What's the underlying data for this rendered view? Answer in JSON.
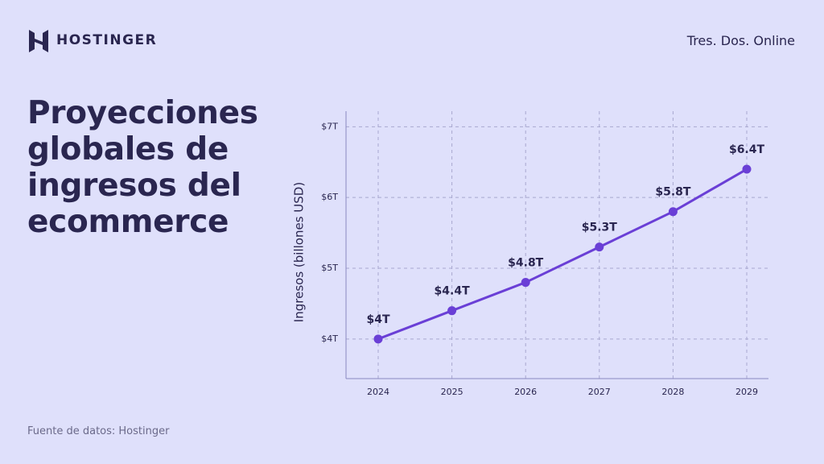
{
  "brand": "HOSTINGER",
  "tagline": "Tres. Dos. Online",
  "source": "Fuente de datos: Hostinger",
  "chart_data": {
    "type": "line",
    "title": "Proyecciones globales de ingresos del ecommerce",
    "ylabel": "Ingresos (billones USD)",
    "categories": [
      "2024",
      "2025",
      "2026",
      "2027",
      "2028",
      "2029"
    ],
    "values": [
      4,
      4.4,
      4.8,
      5.3,
      5.8,
      6.4
    ],
    "value_labels": [
      "$4T",
      "$4.4T",
      "$4.8T",
      "$5.3T",
      "$5.8T",
      "$6.4T"
    ],
    "color": "#6a3fd6",
    "ylim": [
      3.44,
      7.22
    ],
    "yticks": [
      {
        "value": 4,
        "label": "$4T"
      },
      {
        "value": 5,
        "label": "$5T"
      },
      {
        "value": 6,
        "label": "$6T"
      },
      {
        "value": 7,
        "label": "$7T"
      }
    ],
    "grid": true
  }
}
